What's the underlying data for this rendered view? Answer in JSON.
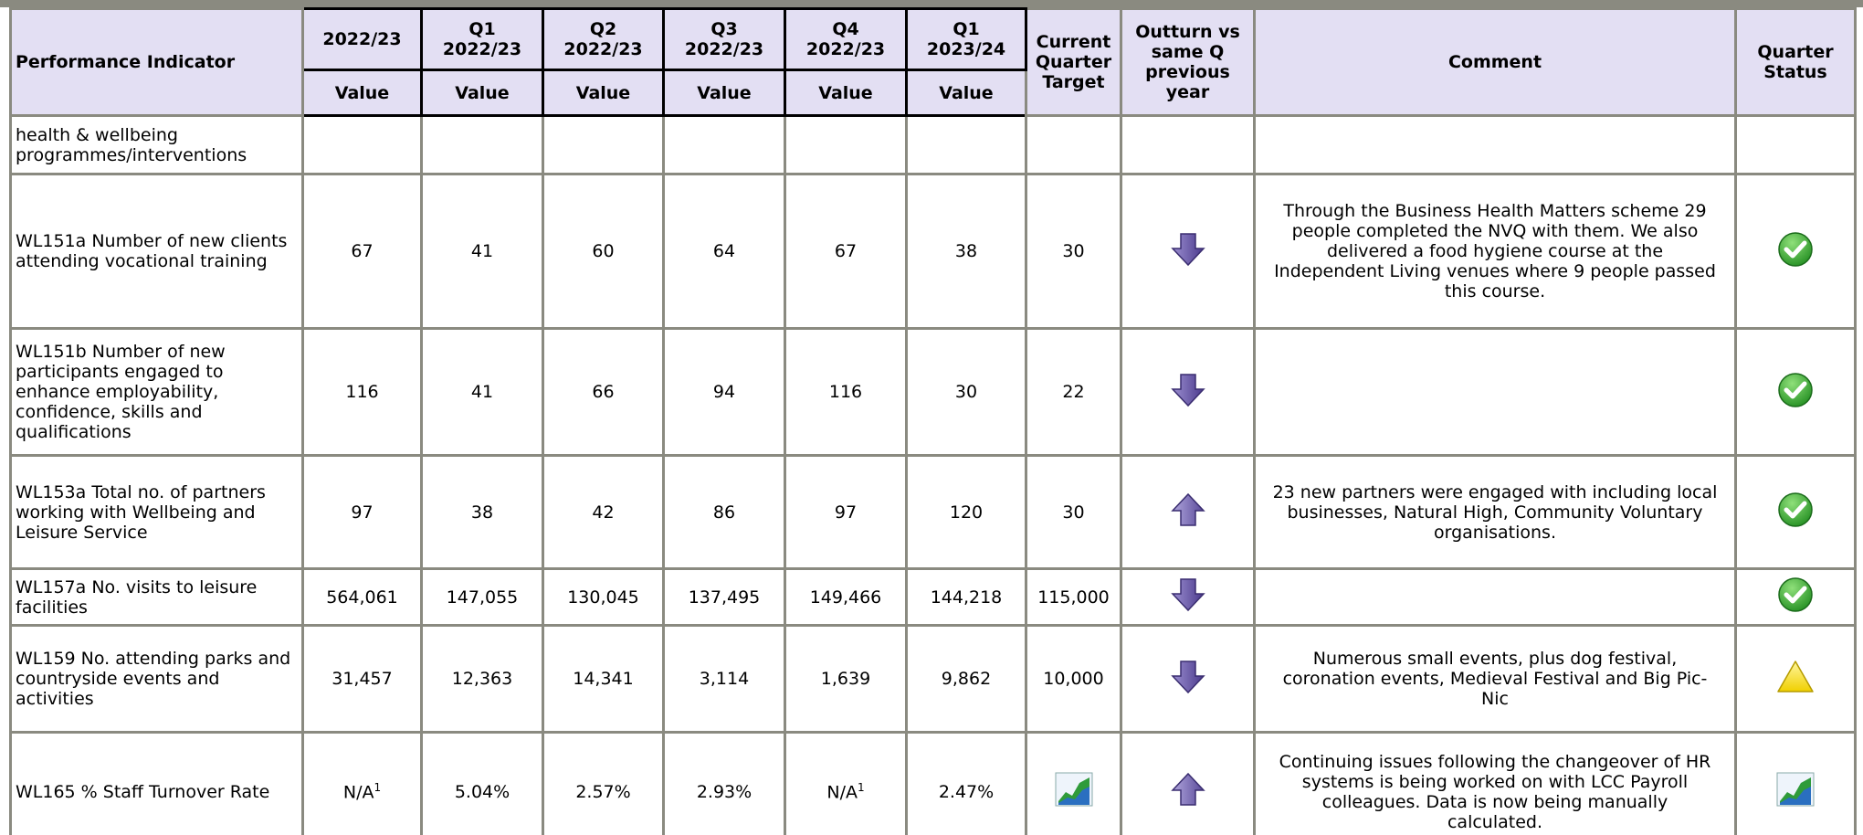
{
  "header": {
    "indicator": "Performance Indicator",
    "periods": [
      "2022/23",
      "Q1 2022/23",
      "Q2 2022/23",
      "Q3 2022/23",
      "Q4 2022/23",
      "Q1 2023/24"
    ],
    "value_label": "Value",
    "target": "Current Quarter Target",
    "outturn": "Outturn vs same Q previous year",
    "comment": "Comment",
    "status": "Quarter Status"
  },
  "rows": [
    {
      "indicator": "health & wellbeing programmes/interventions"
    },
    {
      "indicator": "WL151a Number of new clients attending vocational training",
      "values": [
        "67",
        "41",
        "60",
        "64",
        "67",
        "38"
      ],
      "target": "30",
      "comment": "Through the Business Health Matters scheme 29 people completed the NVQ with them. We also delivered a food hygiene course at the Independent Living venues where 9 people passed this course."
    },
    {
      "indicator": "WL151b Number of new participants engaged to enhance employability, confidence, skills and qualifications",
      "values": [
        "116",
        "41",
        "66",
        "94",
        "116",
        "30"
      ],
      "target": "22"
    },
    {
      "indicator": "WL153a Total no. of partners working with Wellbeing and Leisure Service",
      "values": [
        "97",
        "38",
        "42",
        "86",
        "97",
        "120"
      ],
      "target": "30",
      "comment": "23 new partners were engaged with including local businesses, Natural High, Community Voluntary organisations."
    },
    {
      "indicator": "WL157a No. visits to leisure facilities",
      "values": [
        "564,061",
        "147,055",
        "130,045",
        "137,495",
        "149,466",
        "144,218"
      ],
      "target": "115,000"
    },
    {
      "indicator": "WL159 No. attending parks and countryside events and activities",
      "values": [
        "31,457",
        "12,363",
        "14,341",
        "3,114",
        "1,639",
        "9,862"
      ],
      "target": "10,000",
      "comment": "Numerous small events, plus dog festival, coronation events, Medieval Festival and Big Pic-Nic"
    },
    {
      "indicator": "WL165 % Staff Turnover Rate",
      "values": [
        {
          "text": "N/A",
          "sup": "1"
        },
        "5.04%",
        "2.57%",
        "2.93%",
        {
          "text": "N/A",
          "sup": "1"
        },
        "2.47%"
      ],
      "comment": "Continuing issues following the changeover of HR systems is being worked on with LCC Payroll colleagues. Data is now being manually calculated."
    }
  ]
}
